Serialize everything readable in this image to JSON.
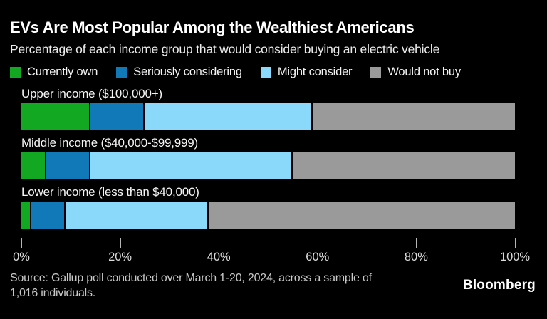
{
  "header": {
    "title": "EVs Are Most Popular Among the Wealthiest Americans",
    "subtitle": "Percentage of each income group that would consider buying an electric vehicle"
  },
  "chart_data": {
    "type": "bar",
    "orientation": "horizontal-stacked",
    "title": "EVs Are Most Popular Among the Wealthiest Americans",
    "subtitle": "Percentage of each income group that would consider buying an electric vehicle",
    "categories": [
      "Upper income ($100,000+)",
      "Middle income ($40,000-$99,999)",
      "Lower income (less than $40,000)"
    ],
    "series": [
      {
        "name": "Currently own",
        "color": "#12a822",
        "values": [
          14,
          5,
          2
        ]
      },
      {
        "name": "Seriously considering",
        "color": "#1179b8",
        "values": [
          11,
          9,
          7
        ]
      },
      {
        "name": "Might consider",
        "color": "#8ad9fb",
        "values": [
          34,
          41,
          29
        ]
      },
      {
        "name": "Would not buy",
        "color": "#9a9a9a",
        "values": [
          41,
          45,
          62
        ]
      }
    ],
    "xlim": [
      0,
      100
    ],
    "x_ticks": [
      {
        "value": 0,
        "label": "0%"
      },
      {
        "value": 20,
        "label": "20%"
      },
      {
        "value": 40,
        "label": "40%"
      },
      {
        "value": 60,
        "label": "60%"
      },
      {
        "value": 80,
        "label": "80%"
      },
      {
        "value": 100,
        "label": "100%"
      }
    ],
    "legend_position": "top",
    "grid": false,
    "background": "#000000"
  },
  "footer": {
    "source_line1": "Source: Gallup poll conducted over March 1-20, 2024, across a sample of",
    "source_line2": "1,016 individuals.",
    "brand": "Bloomberg"
  },
  "colors": {
    "background": "#000000",
    "segment_divider": "#000000",
    "tick": "#b5b5b5"
  }
}
